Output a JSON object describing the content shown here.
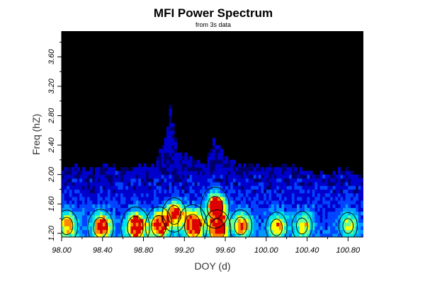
{
  "chart_data": {
    "type": "heatmap",
    "title": "MFI Power Spectrum",
    "subtitle": "from 3s data",
    "xlabel": "DOY (d)",
    "ylabel": "Freq (hZ)",
    "xlim": [
      98.0,
      100.95
    ],
    "ylim": [
      1.15,
      3.95
    ],
    "x_ticks": [
      "98.00",
      "98.40",
      "98.80",
      "99.20",
      "99.60",
      "100.00",
      "100.40",
      "100.80"
    ],
    "x_tick_values": [
      98.0,
      98.4,
      98.8,
      99.2,
      99.6,
      100.0,
      100.4,
      100.8
    ],
    "y_ticks": [
      "1.20",
      "1.60",
      "2.00",
      "2.40",
      "2.80",
      "3.20",
      "3.60"
    ],
    "y_tick_values": [
      1.2,
      1.6,
      2.0,
      2.4,
      2.8,
      3.2,
      3.6
    ],
    "background_color": "#000000",
    "colorscale": [
      "#000000",
      "#000066",
      "#0000cc",
      "#0044ff",
      "#0099ff",
      "#00e5e5",
      "#66ff99",
      "#ffff00",
      "#ff8800",
      "#dd0000"
    ],
    "upper_envelope": [
      [
        98.0,
        2.05
      ],
      [
        98.15,
        2.08
      ],
      [
        98.3,
        2.02
      ],
      [
        98.45,
        2.1
      ],
      [
        98.6,
        2.05
      ],
      [
        98.75,
        2.08
      ],
      [
        98.9,
        2.12
      ],
      [
        99.02,
        2.55
      ],
      [
        99.05,
        2.95
      ],
      [
        99.12,
        2.3
      ],
      [
        99.25,
        2.2
      ],
      [
        99.4,
        2.1
      ],
      [
        99.47,
        2.45
      ],
      [
        99.55,
        2.3
      ],
      [
        99.7,
        2.12
      ],
      [
        99.85,
        2.1
      ],
      [
        100.0,
        2.08
      ],
      [
        100.15,
        2.12
      ],
      [
        100.3,
        2.08
      ],
      [
        100.45,
        2.0
      ],
      [
        100.6,
        1.98
      ],
      [
        100.75,
        2.05
      ],
      [
        100.85,
        2.02
      ],
      [
        100.95,
        1.92
      ]
    ],
    "hotspots": [
      {
        "x": 98.05,
        "y": 1.3,
        "level": 0.6
      },
      {
        "x": 98.38,
        "y": 1.28,
        "level": 0.78
      },
      {
        "x": 98.72,
        "y": 1.28,
        "level": 0.95
      },
      {
        "x": 98.95,
        "y": 1.3,
        "level": 0.85
      },
      {
        "x": 99.1,
        "y": 1.45,
        "level": 0.7
      },
      {
        "x": 99.28,
        "y": 1.3,
        "level": 1.0
      },
      {
        "x": 99.5,
        "y": 1.55,
        "level": 0.95
      },
      {
        "x": 99.52,
        "y": 1.25,
        "level": 0.9
      },
      {
        "x": 99.75,
        "y": 1.3,
        "level": 0.62
      },
      {
        "x": 100.1,
        "y": 1.28,
        "level": 0.55
      },
      {
        "x": 100.35,
        "y": 1.3,
        "level": 0.5
      },
      {
        "x": 100.8,
        "y": 1.3,
        "level": 0.42
      }
    ]
  }
}
